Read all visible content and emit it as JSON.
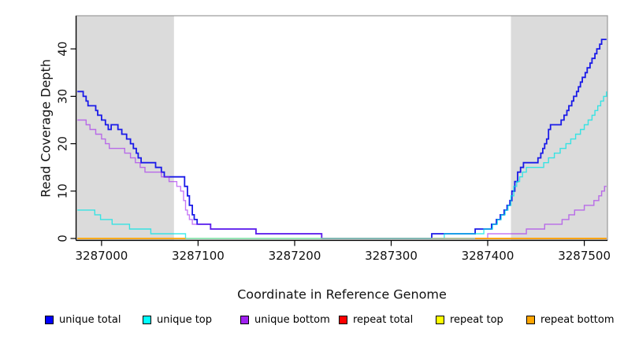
{
  "chart_data": {
    "type": "step-line",
    "title": "",
    "xlabel": "Coordinate in Reference Genome",
    "ylabel": "Read Coverage Depth",
    "x_domain": [
      3286974,
      3287524
    ],
    "y_domain": [
      0,
      47
    ],
    "x_ticks": [
      3287000,
      3287100,
      3287200,
      3287300,
      3287400,
      3287500
    ],
    "x_tick_labels": [
      "3287000",
      "3287100",
      "3287200",
      "3287300",
      "3287400",
      "3287500"
    ],
    "y_ticks": [
      0,
      10,
      20,
      30,
      40
    ],
    "y_tick_labels": [
      "0",
      "10",
      "20",
      "30",
      "40"
    ],
    "grid": false,
    "shade_color": "#DBDBDB",
    "shaded_x_regions": [
      [
        3286974,
        3287075
      ],
      [
        3287424,
        3287524
      ]
    ],
    "box_color": "#999999",
    "axis_color": "#000000",
    "legend_position": "bottom",
    "series": [
      {
        "name": "unique-total",
        "label": "unique total",
        "color": "#0000FF",
        "line_color": "#1A1AE8",
        "line_width": 1.8,
        "opacity": 1,
        "segments": [
          [
            [
              3286975,
              31
            ],
            [
              3286981,
              30
            ],
            [
              3286984,
              29
            ],
            [
              3286986,
              28
            ],
            [
              3286994,
              27
            ],
            [
              3286996,
              26
            ],
            [
              3287000,
              25
            ],
            [
              3287004,
              24
            ],
            [
              3287007,
              23
            ],
            [
              3287010,
              24
            ],
            [
              3287017,
              23
            ],
            [
              3287021,
              22
            ],
            [
              3287026,
              21
            ],
            [
              3287030,
              20
            ],
            [
              3287033,
              19
            ],
            [
              3287036,
              18
            ],
            [
              3287038,
              17
            ],
            [
              3287041,
              16
            ],
            [
              3287056,
              15
            ],
            [
              3287062,
              14
            ],
            [
              3287065,
              13
            ],
            [
              3287086,
              11
            ],
            [
              3287089,
              9
            ],
            [
              3287091,
              7
            ],
            [
              3287094,
              5
            ],
            [
              3287096,
              4
            ],
            [
              3287099,
              3
            ],
            [
              3287113,
              2
            ],
            [
              3287160,
              1
            ],
            [
              3287228,
              0
            ],
            [
              3287342,
              1
            ],
            [
              3287387,
              2
            ],
            [
              3287404,
              3
            ],
            [
              3287409,
              4
            ],
            [
              3287413,
              5
            ],
            [
              3287417,
              6
            ],
            [
              3287420,
              7
            ],
            [
              3287423,
              8
            ],
            [
              3287425,
              10
            ],
            [
              3287428,
              12
            ],
            [
              3287431,
              14
            ],
            [
              3287434,
              15
            ],
            [
              3287437,
              16
            ],
            [
              3287452,
              17
            ],
            [
              3287455,
              18
            ],
            [
              3287457,
              19
            ],
            [
              3287459,
              20
            ],
            [
              3287461,
              21
            ],
            [
              3287463,
              23
            ],
            [
              3287465,
              24
            ],
            [
              3287476,
              25
            ],
            [
              3287479,
              26
            ],
            [
              3287482,
              27
            ],
            [
              3287484,
              28
            ],
            [
              3287487,
              29
            ],
            [
              3287489,
              30
            ],
            [
              3287492,
              31
            ],
            [
              3287494,
              32
            ],
            [
              3287496,
              33
            ],
            [
              3287498,
              34
            ],
            [
              3287501,
              35
            ],
            [
              3287503,
              36
            ],
            [
              3287506,
              37
            ],
            [
              3287508,
              38
            ],
            [
              3287511,
              39
            ],
            [
              3287513,
              40
            ],
            [
              3287516,
              41
            ],
            [
              3287518,
              42
            ],
            [
              3287523,
              42
            ]
          ]
        ]
      },
      {
        "name": "unique-top",
        "label": "unique top",
        "color": "#00FFFF",
        "line_color": "#00E5E5",
        "line_width": 1.4,
        "opacity": 0.75,
        "segments": [
          [
            [
              3286975,
              6
            ],
            [
              3286993,
              5
            ],
            [
              3286999,
              4
            ],
            [
              3287011,
              3
            ],
            [
              3287029,
              2
            ],
            [
              3287051,
              1
            ],
            [
              3287087,
              0
            ],
            [
              3287355,
              1
            ],
            [
              3287396,
              2
            ],
            [
              3287405,
              3
            ],
            [
              3287410,
              4
            ],
            [
              3287414,
              5
            ],
            [
              3287418,
              6
            ],
            [
              3287421,
              7
            ],
            [
              3287424,
              9
            ],
            [
              3287427,
              11
            ],
            [
              3287430,
              12
            ],
            [
              3287433,
              13
            ],
            [
              3287436,
              14
            ],
            [
              3287440,
              15
            ],
            [
              3287458,
              16
            ],
            [
              3287463,
              17
            ],
            [
              3287469,
              18
            ],
            [
              3287475,
              19
            ],
            [
              3287481,
              20
            ],
            [
              3287486,
              21
            ],
            [
              3287491,
              22
            ],
            [
              3287496,
              23
            ],
            [
              3287500,
              24
            ],
            [
              3287504,
              25
            ],
            [
              3287508,
              26
            ],
            [
              3287511,
              27
            ],
            [
              3287514,
              28
            ],
            [
              3287517,
              29
            ],
            [
              3287520,
              30
            ],
            [
              3287523,
              31
            ]
          ]
        ]
      },
      {
        "name": "unique-bottom",
        "label": "unique bottom",
        "color": "#A020F0",
        "line_color": "#A020F0",
        "line_width": 1.4,
        "opacity": 0.6,
        "segments": [
          [
            [
              3286975,
              25
            ],
            [
              3286984,
              24
            ],
            [
              3286988,
              23
            ],
            [
              3286994,
              22
            ],
            [
              3287000,
              21
            ],
            [
              3287004,
              20
            ],
            [
              3287008,
              19
            ],
            [
              3287024,
              18
            ],
            [
              3287030,
              17
            ],
            [
              3287035,
              16
            ],
            [
              3287040,
              15
            ],
            [
              3287045,
              14
            ],
            [
              3287062,
              13
            ],
            [
              3287070,
              12
            ],
            [
              3287078,
              11
            ],
            [
              3287082,
              10
            ],
            [
              3287085,
              8
            ],
            [
              3287087,
              6
            ],
            [
              3287089,
              5
            ],
            [
              3287091,
              4
            ],
            [
              3287094,
              3
            ],
            [
              3287113,
              2
            ],
            [
              3287160,
              1
            ],
            [
              3287228,
              0
            ],
            [
              3287400,
              1
            ],
            [
              3287440,
              2
            ],
            [
              3287459,
              3
            ],
            [
              3287477,
              4
            ],
            [
              3287484,
              5
            ],
            [
              3287490,
              6
            ],
            [
              3287500,
              7
            ],
            [
              3287510,
              8
            ],
            [
              3287515,
              9
            ],
            [
              3287518,
              10
            ],
            [
              3287521,
              11
            ],
            [
              3287523,
              11
            ]
          ]
        ]
      },
      {
        "name": "repeat-total",
        "label": "repeat total",
        "color": "#FF0000",
        "line_color": "#F03A50",
        "line_width": 1.4,
        "opacity": 0.8,
        "segments": [
          [
            [
              3287342,
              0
            ],
            [
              3287523,
              0
            ]
          ]
        ]
      },
      {
        "name": "repeat-top",
        "label": "repeat top",
        "color": "#FFFF00",
        "line_color": "#98E098",
        "line_width": 1.4,
        "opacity": 0.9,
        "segments": [
          [
            [
              3287087,
              0
            ],
            [
              3287387,
              0
            ]
          ]
        ]
      },
      {
        "name": "repeat-bottom",
        "label": "repeat bottom",
        "color": "#FFA500",
        "line_color": "#FFA500",
        "line_width": 1.7,
        "opacity": 1,
        "segments": [
          [
            [
              3286975,
              0
            ],
            [
              3287087,
              0
            ]
          ],
          [
            [
              3287387,
              0
            ],
            [
              3287523,
              0
            ]
          ]
        ]
      }
    ]
  }
}
